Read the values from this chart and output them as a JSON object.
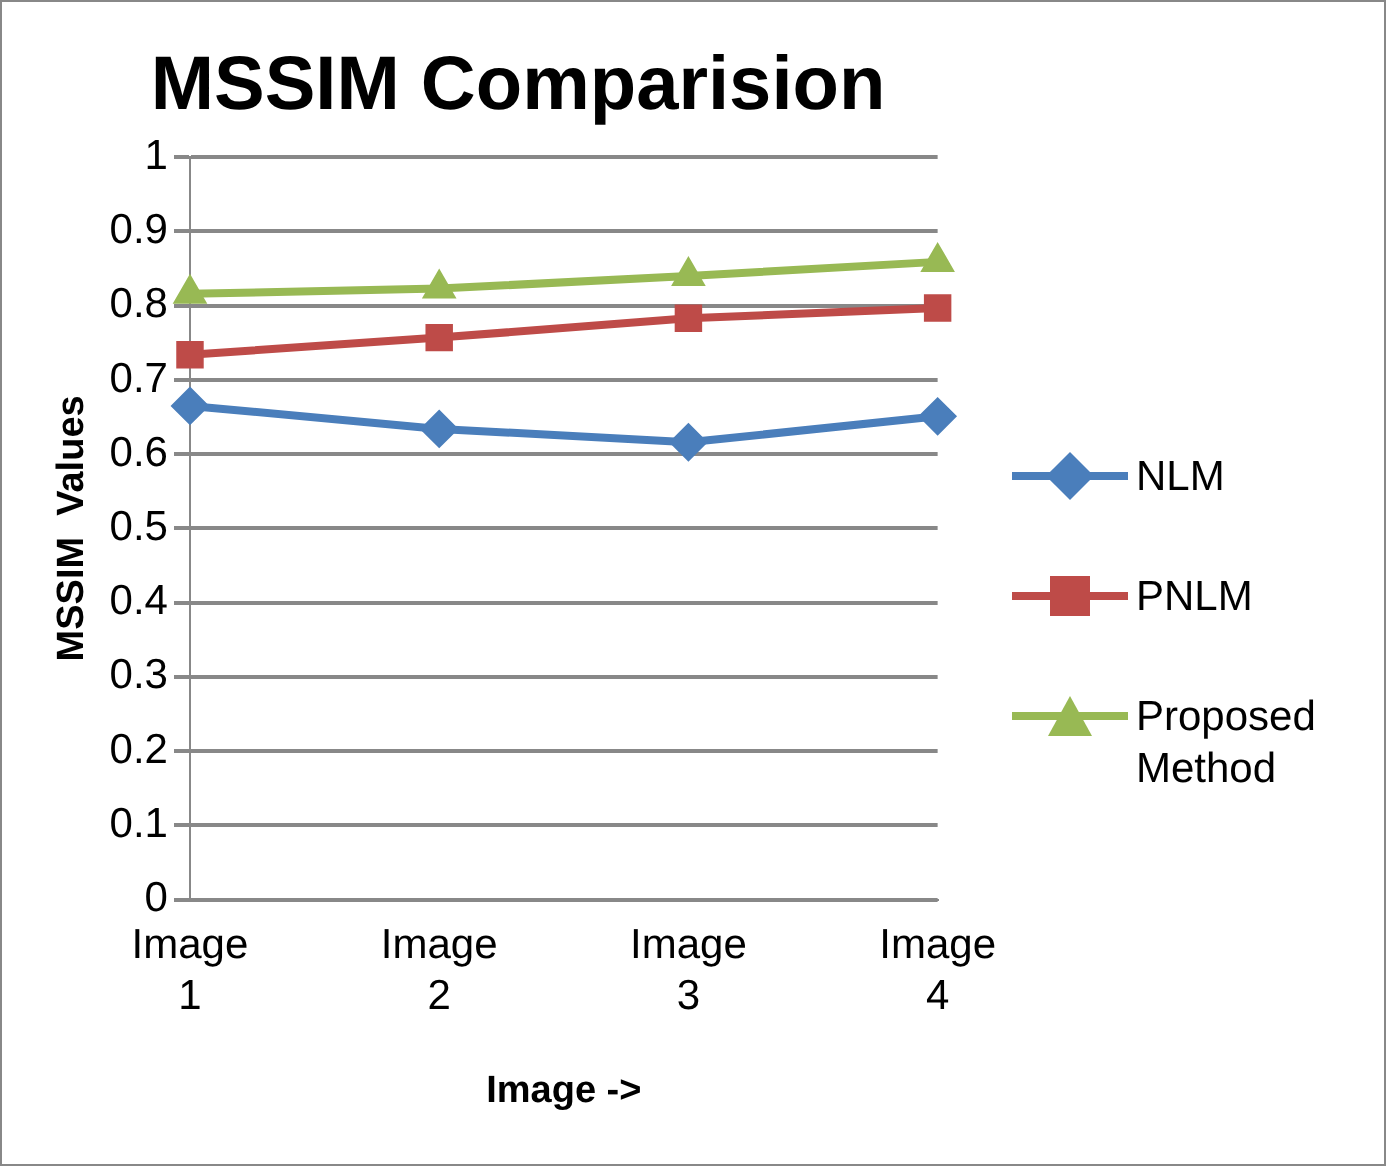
{
  "chart_data": {
    "type": "line",
    "title": "MSSIM Comparision",
    "xlabel": "Image ->",
    "ylabel": "MSSIM  Values",
    "categories": [
      "Image 1",
      "Image 2",
      "Image 3",
      "Image 4"
    ],
    "series": [
      {
        "name": "NLM",
        "color": "#4a7ebb",
        "marker": "diamond",
        "values": [
          0.665,
          0.634,
          0.616,
          0.651
        ]
      },
      {
        "name": "PNLM",
        "color": "#be4b48",
        "marker": "square",
        "values": [
          0.734,
          0.757,
          0.783,
          0.797
        ]
      },
      {
        "name": "Proposed Method",
        "color": "#98b954",
        "marker": "triangle",
        "values": [
          0.816,
          0.823,
          0.84,
          0.859
        ]
      }
    ],
    "ylim": [
      0,
      1
    ],
    "yticks": [
      0,
      0.1,
      0.2,
      0.3,
      0.4,
      0.5,
      0.6,
      0.7,
      0.8,
      0.9,
      1
    ],
    "grid": "y",
    "legend": "right"
  }
}
